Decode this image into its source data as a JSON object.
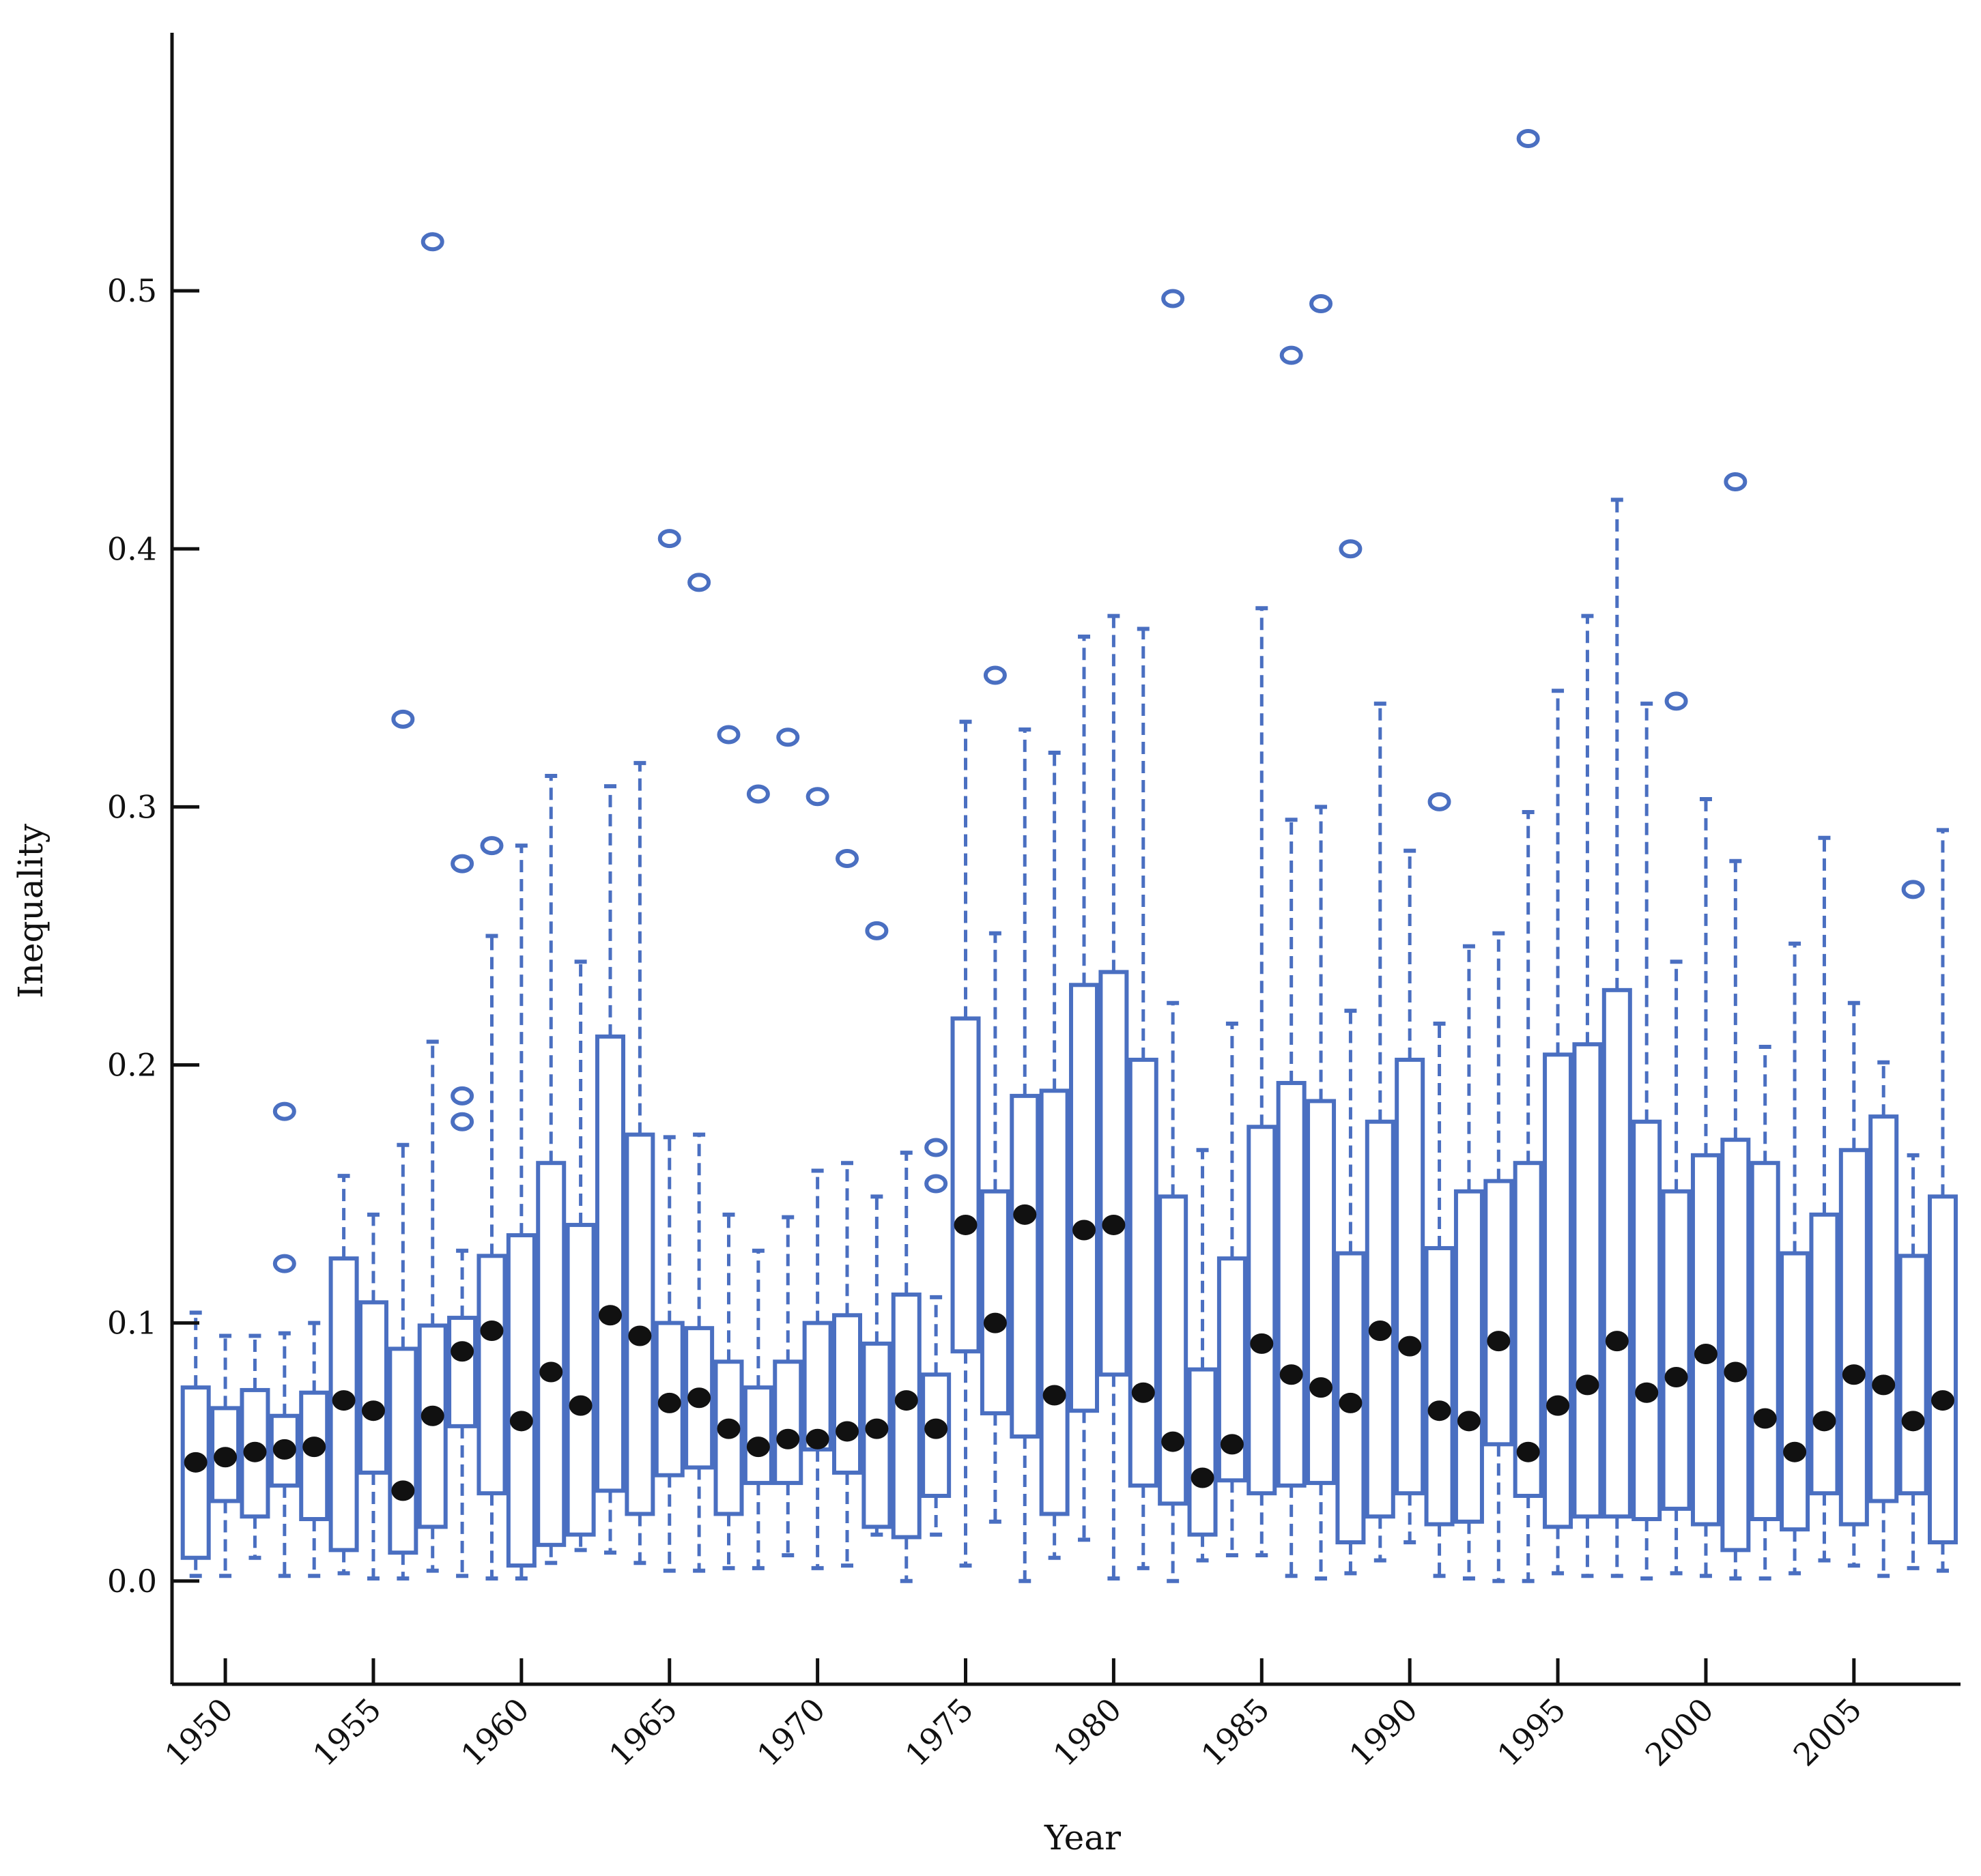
{
  "chart_data": {
    "type": "boxplot",
    "xlabel": "Year",
    "ylabel": "Inequality",
    "ylim": [
      -0.04,
      0.6
    ],
    "xlim": [
      1948.2,
      2008.6
    ],
    "x_ticks": [
      1950,
      1955,
      1960,
      1965,
      1970,
      1975,
      1980,
      1985,
      1990,
      1995,
      2000,
      2005
    ],
    "x_tick_labels": [
      "1950",
      "1955",
      "1960",
      "1965",
      "1970",
      "1975",
      "1980",
      "1985",
      "1990",
      "1995",
      "2000",
      "2005"
    ],
    "y_ticks": [
      0.0,
      0.1,
      0.2,
      0.3,
      0.4,
      0.5
    ],
    "y_tick_labels": [
      "0.0",
      "0.1",
      "0.2",
      "0.3",
      "0.4",
      "0.5"
    ],
    "colors": {
      "box": "#4a6fc1",
      "median": "#111111",
      "axis": "#111111"
    },
    "boxes": [
      {
        "year": 1949,
        "min": 0.002,
        "q1": 0.009,
        "median": 0.046,
        "q3": 0.075,
        "max": 0.104,
        "outliers": []
      },
      {
        "year": 1950,
        "min": 0.002,
        "q1": 0.031,
        "median": 0.048,
        "q3": 0.067,
        "max": 0.095,
        "outliers": []
      },
      {
        "year": 1951,
        "min": 0.009,
        "q1": 0.025,
        "median": 0.05,
        "q3": 0.074,
        "max": 0.095,
        "outliers": []
      },
      {
        "year": 1952,
        "min": 0.002,
        "q1": 0.037,
        "median": 0.051,
        "q3": 0.064,
        "max": 0.096,
        "outliers": [
          0.123,
          0.182
        ]
      },
      {
        "year": 1953,
        "min": 0.002,
        "q1": 0.024,
        "median": 0.052,
        "q3": 0.073,
        "max": 0.1,
        "outliers": []
      },
      {
        "year": 1954,
        "min": 0.003,
        "q1": 0.012,
        "median": 0.07,
        "q3": 0.125,
        "max": 0.157,
        "outliers": []
      },
      {
        "year": 1955,
        "min": 0.001,
        "q1": 0.042,
        "median": 0.066,
        "q3": 0.108,
        "max": 0.142,
        "outliers": []
      },
      {
        "year": 1956,
        "min": 0.001,
        "q1": 0.011,
        "median": 0.035,
        "q3": 0.09,
        "max": 0.169,
        "outliers": [
          0.334
        ]
      },
      {
        "year": 1957,
        "min": 0.004,
        "q1": 0.021,
        "median": 0.064,
        "q3": 0.099,
        "max": 0.209,
        "outliers": [
          0.519
        ]
      },
      {
        "year": 1958,
        "min": 0.002,
        "q1": 0.06,
        "median": 0.089,
        "q3": 0.102,
        "max": 0.128,
        "outliers": [
          0.178,
          0.188,
          0.278
        ]
      },
      {
        "year": 1959,
        "min": 0.001,
        "q1": 0.034,
        "median": 0.097,
        "q3": 0.126,
        "max": 0.25,
        "outliers": [
          0.285
        ]
      },
      {
        "year": 1960,
        "min": 0.001,
        "q1": 0.006,
        "median": 0.062,
        "q3": 0.134,
        "max": 0.285,
        "outliers": []
      },
      {
        "year": 1961,
        "min": 0.007,
        "q1": 0.014,
        "median": 0.081,
        "q3": 0.162,
        "max": 0.312,
        "outliers": []
      },
      {
        "year": 1962,
        "min": 0.012,
        "q1": 0.018,
        "median": 0.068,
        "q3": 0.138,
        "max": 0.24,
        "outliers": []
      },
      {
        "year": 1963,
        "min": 0.011,
        "q1": 0.035,
        "median": 0.103,
        "q3": 0.211,
        "max": 0.308,
        "outliers": []
      },
      {
        "year": 1964,
        "min": 0.007,
        "q1": 0.026,
        "median": 0.095,
        "q3": 0.173,
        "max": 0.317,
        "outliers": []
      },
      {
        "year": 1965,
        "min": 0.004,
        "q1": 0.041,
        "median": 0.069,
        "q3": 0.1,
        "max": 0.172,
        "outliers": [
          0.404
        ]
      },
      {
        "year": 1966,
        "min": 0.004,
        "q1": 0.044,
        "median": 0.071,
        "q3": 0.098,
        "max": 0.173,
        "outliers": [
          0.387
        ]
      },
      {
        "year": 1967,
        "min": 0.005,
        "q1": 0.026,
        "median": 0.059,
        "q3": 0.085,
        "max": 0.142,
        "outliers": [
          0.328
        ]
      },
      {
        "year": 1968,
        "min": 0.005,
        "q1": 0.038,
        "median": 0.052,
        "q3": 0.075,
        "max": 0.128,
        "outliers": [
          0.305
        ]
      },
      {
        "year": 1969,
        "min": 0.01,
        "q1": 0.038,
        "median": 0.055,
        "q3": 0.085,
        "max": 0.141,
        "outliers": [
          0.327
        ]
      },
      {
        "year": 1970,
        "min": 0.005,
        "q1": 0.051,
        "median": 0.055,
        "q3": 0.1,
        "max": 0.159,
        "outliers": [
          0.304
        ]
      },
      {
        "year": 1971,
        "min": 0.006,
        "q1": 0.042,
        "median": 0.058,
        "q3": 0.103,
        "max": 0.162,
        "outliers": [
          0.28
        ]
      },
      {
        "year": 1972,
        "min": 0.018,
        "q1": 0.021,
        "median": 0.059,
        "q3": 0.092,
        "max": 0.149,
        "outliers": [
          0.252
        ]
      },
      {
        "year": 1973,
        "min": 0.0,
        "q1": 0.017,
        "median": 0.07,
        "q3": 0.111,
        "max": 0.166,
        "outliers": []
      },
      {
        "year": 1974,
        "min": 0.018,
        "q1": 0.033,
        "median": 0.059,
        "q3": 0.08,
        "max": 0.11,
        "outliers": [
          0.154,
          0.168
        ]
      },
      {
        "year": 1975,
        "min": 0.006,
        "q1": 0.089,
        "median": 0.138,
        "q3": 0.218,
        "max": 0.333,
        "outliers": []
      },
      {
        "year": 1976,
        "min": 0.023,
        "q1": 0.065,
        "median": 0.1,
        "q3": 0.151,
        "max": 0.251,
        "outliers": [
          0.351
        ]
      },
      {
        "year": 1977,
        "min": 0.0,
        "q1": 0.056,
        "median": 0.142,
        "q3": 0.188,
        "max": 0.33,
        "outliers": []
      },
      {
        "year": 1978,
        "min": 0.009,
        "q1": 0.026,
        "median": 0.072,
        "q3": 0.19,
        "max": 0.321,
        "outliers": []
      },
      {
        "year": 1979,
        "min": 0.016,
        "q1": 0.066,
        "median": 0.136,
        "q3": 0.231,
        "max": 0.366,
        "outliers": []
      },
      {
        "year": 1980,
        "min": 0.001,
        "q1": 0.08,
        "median": 0.138,
        "q3": 0.236,
        "max": 0.374,
        "outliers": []
      },
      {
        "year": 1981,
        "min": 0.005,
        "q1": 0.037,
        "median": 0.073,
        "q3": 0.202,
        "max": 0.369,
        "outliers": []
      },
      {
        "year": 1982,
        "min": 0.0,
        "q1": 0.03,
        "median": 0.054,
        "q3": 0.149,
        "max": 0.224,
        "outliers": [
          0.497
        ]
      },
      {
        "year": 1983,
        "min": 0.008,
        "q1": 0.018,
        "median": 0.04,
        "q3": 0.082,
        "max": 0.167,
        "outliers": []
      },
      {
        "year": 1984,
        "min": 0.01,
        "q1": 0.039,
        "median": 0.053,
        "q3": 0.125,
        "max": 0.216,
        "outliers": []
      },
      {
        "year": 1985,
        "min": 0.01,
        "q1": 0.034,
        "median": 0.092,
        "q3": 0.176,
        "max": 0.377,
        "outliers": []
      },
      {
        "year": 1986,
        "min": 0.002,
        "q1": 0.037,
        "median": 0.08,
        "q3": 0.193,
        "max": 0.295,
        "outliers": [
          0.475
        ]
      },
      {
        "year": 1987,
        "min": 0.001,
        "q1": 0.038,
        "median": 0.075,
        "q3": 0.186,
        "max": 0.3,
        "outliers": [
          0.495
        ]
      },
      {
        "year": 1988,
        "min": 0.003,
        "q1": 0.015,
        "median": 0.069,
        "q3": 0.127,
        "max": 0.221,
        "outliers": [
          0.4
        ]
      },
      {
        "year": 1989,
        "min": 0.008,
        "q1": 0.025,
        "median": 0.097,
        "q3": 0.178,
        "max": 0.34,
        "outliers": []
      },
      {
        "year": 1990,
        "min": 0.015,
        "q1": 0.034,
        "median": 0.091,
        "q3": 0.202,
        "max": 0.283,
        "outliers": []
      },
      {
        "year": 1991,
        "min": 0.002,
        "q1": 0.022,
        "median": 0.066,
        "q3": 0.129,
        "max": 0.216,
        "outliers": [
          0.302
        ]
      },
      {
        "year": 1992,
        "min": 0.001,
        "q1": 0.023,
        "median": 0.062,
        "q3": 0.151,
        "max": 0.246,
        "outliers": []
      },
      {
        "year": 1993,
        "min": 0.0,
        "q1": 0.053,
        "median": 0.093,
        "q3": 0.155,
        "max": 0.251,
        "outliers": []
      },
      {
        "year": 1994,
        "min": 0.0,
        "q1": 0.033,
        "median": 0.05,
        "q3": 0.162,
        "max": 0.298,
        "outliers": [
          0.559
        ]
      },
      {
        "year": 1995,
        "min": 0.003,
        "q1": 0.021,
        "median": 0.068,
        "q3": 0.204,
        "max": 0.345,
        "outliers": []
      },
      {
        "year": 1996,
        "min": 0.002,
        "q1": 0.025,
        "median": 0.076,
        "q3": 0.208,
        "max": 0.374,
        "outliers": []
      },
      {
        "year": 1997,
        "min": 0.002,
        "q1": 0.025,
        "median": 0.093,
        "q3": 0.229,
        "max": 0.419,
        "outliers": []
      },
      {
        "year": 1998,
        "min": 0.001,
        "q1": 0.024,
        "median": 0.073,
        "q3": 0.178,
        "max": 0.34,
        "outliers": []
      },
      {
        "year": 1999,
        "min": 0.003,
        "q1": 0.028,
        "median": 0.079,
        "q3": 0.151,
        "max": 0.24,
        "outliers": [
          0.341
        ]
      },
      {
        "year": 2000,
        "min": 0.002,
        "q1": 0.022,
        "median": 0.088,
        "q3": 0.165,
        "max": 0.303,
        "outliers": []
      },
      {
        "year": 2001,
        "min": 0.001,
        "q1": 0.012,
        "median": 0.081,
        "q3": 0.171,
        "max": 0.279,
        "outliers": [
          0.426
        ]
      },
      {
        "year": 2002,
        "min": 0.001,
        "q1": 0.024,
        "median": 0.063,
        "q3": 0.162,
        "max": 0.207,
        "outliers": []
      },
      {
        "year": 2003,
        "min": 0.003,
        "q1": 0.02,
        "median": 0.05,
        "q3": 0.127,
        "max": 0.247,
        "outliers": []
      },
      {
        "year": 2004,
        "min": 0.008,
        "q1": 0.034,
        "median": 0.062,
        "q3": 0.142,
        "max": 0.288,
        "outliers": []
      },
      {
        "year": 2005,
        "min": 0.006,
        "q1": 0.022,
        "median": 0.08,
        "q3": 0.167,
        "max": 0.224,
        "outliers": []
      },
      {
        "year": 2006,
        "min": 0.002,
        "q1": 0.031,
        "median": 0.076,
        "q3": 0.18,
        "max": 0.201,
        "outliers": []
      },
      {
        "year": 2007,
        "min": 0.005,
        "q1": 0.034,
        "median": 0.062,
        "q3": 0.126,
        "max": 0.165,
        "outliers": [
          0.268
        ]
      },
      {
        "year": 2008,
        "min": 0.004,
        "q1": 0.015,
        "median": 0.07,
        "q3": 0.149,
        "max": 0.291,
        "outliers": []
      }
    ]
  }
}
